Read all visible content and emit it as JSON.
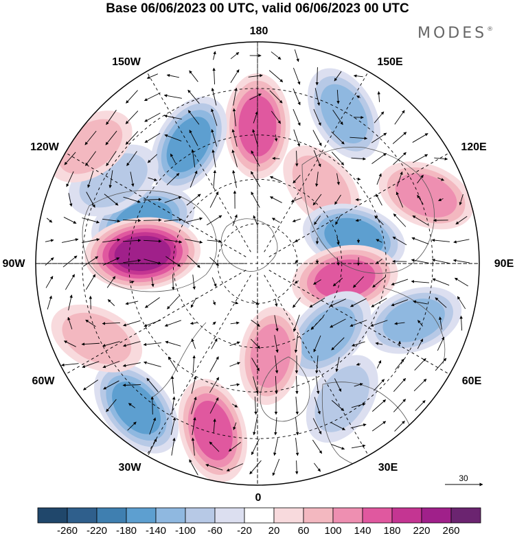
{
  "title": "Base 06/06/2023 00 UTC, valid 06/06/2023 00 UTC",
  "brand": {
    "name": "MODES",
    "mark": "®"
  },
  "longitude_labels": {
    "n180": "180",
    "e150": "150E",
    "e120": "120E",
    "e90": "90E",
    "e60": "60E",
    "e30": "30E",
    "zero": "0",
    "w30": "30W",
    "w60": "60W",
    "w90": "90W",
    "w120": "120W",
    "w150": "150W"
  },
  "reference_vector": {
    "value": "30"
  },
  "colorbar": {
    "ticks": [
      "-260",
      "-220",
      "-180",
      "-140",
      "-100",
      "-60",
      "-20",
      "20",
      "60",
      "100",
      "140",
      "180",
      "220",
      "260"
    ],
    "colors": [
      "#20476b",
      "#2f5f8c",
      "#3f7fb0",
      "#5d9fd0",
      "#8fb8e0",
      "#b7c9e6",
      "#dcdff0",
      "#ffffff",
      "#f8dadd",
      "#f3b8c0",
      "#ee8fb1",
      "#e0589f",
      "#c43592",
      "#a0208a",
      "#6b2470"
    ]
  },
  "map_anomalies": [
    {
      "lon": 180,
      "r": 0.62,
      "value": 160
    },
    {
      "lon": 150,
      "r": 0.78,
      "value": -110
    },
    {
      "lon": 140,
      "r": 0.45,
      "value": 90
    },
    {
      "lon": 105,
      "r": 0.45,
      "value": -150
    },
    {
      "lon": 112,
      "r": 0.82,
      "value": 110
    },
    {
      "lon": 80,
      "r": 0.4,
      "value": 170
    },
    {
      "lon": 70,
      "r": 0.75,
      "value": -110
    },
    {
      "lon": 45,
      "r": 0.45,
      "value": -140
    },
    {
      "lon": 32,
      "r": 0.72,
      "value": -90
    },
    {
      "lon": 8,
      "r": 0.42,
      "value": 110
    },
    {
      "lon": 345,
      "r": 0.78,
      "value": 160
    },
    {
      "lon": 320,
      "r": 0.85,
      "value": -160
    },
    {
      "lon": 295,
      "r": 0.8,
      "value": 90
    },
    {
      "lon": 250,
      "r": 0.55,
      "value": -170
    },
    {
      "lon": 265,
      "r": 0.52,
      "value": 240
    },
    {
      "lon": 210,
      "r": 0.62,
      "value": -150
    },
    {
      "lon": 240,
      "r": 0.75,
      "value": -100
    },
    {
      "lon": 235,
      "r": 0.92,
      "value": 70
    }
  ]
}
